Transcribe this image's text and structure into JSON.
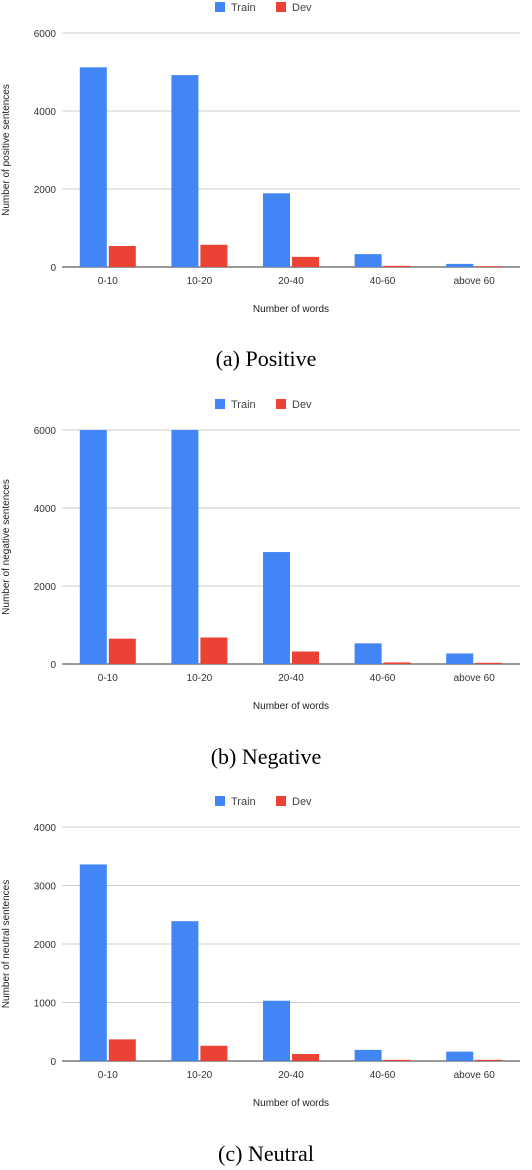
{
  "chart_data": [
    {
      "type": "bar",
      "categories": [
        "0-10",
        "10-20",
        "20-40",
        "40-60",
        "above 60"
      ],
      "series": [
        {
          "name": "Train",
          "color": "#4285f4",
          "values": [
            5120,
            4920,
            1890,
            330,
            80
          ]
        },
        {
          "name": "Dev",
          "color": "#ea4335",
          "values": [
            540,
            570,
            260,
            30,
            10
          ]
        }
      ],
      "xlabel": "Number of words",
      "ylabel": "Number of positive sentences",
      "ylim": [
        0,
        6000
      ],
      "yticks": [
        0,
        2000,
        4000,
        6000
      ],
      "legend": "top",
      "grid": true
    },
    {
      "type": "bar",
      "categories": [
        "0-10",
        "10-20",
        "20-40",
        "40-60",
        "above 60"
      ],
      "series": [
        {
          "name": "Train",
          "color": "#4285f4",
          "values": [
            6000,
            6000,
            2870,
            530,
            270
          ]
        },
        {
          "name": "Dev",
          "color": "#ea4335",
          "values": [
            650,
            680,
            320,
            40,
            30
          ]
        }
      ],
      "xlabel": "Number of words",
      "ylabel": "Number of negative sentences",
      "ylim": [
        0,
        6000
      ],
      "yticks": [
        0,
        2000,
        4000,
        6000
      ],
      "legend": "top",
      "grid": true
    },
    {
      "type": "bar",
      "categories": [
        "0-10",
        "10-20",
        "20-40",
        "40-60",
        "above 60"
      ],
      "series": [
        {
          "name": "Train",
          "color": "#4285f4",
          "values": [
            3360,
            2390,
            1030,
            190,
            160
          ]
        },
        {
          "name": "Dev",
          "color": "#ea4335",
          "values": [
            370,
            260,
            120,
            20,
            20
          ]
        }
      ],
      "xlabel": "Number of words",
      "ylabel": "Number of neutral sentences",
      "ylim": [
        0,
        4000
      ],
      "yticks": [
        0,
        1000,
        2000,
        3000,
        4000
      ],
      "legend": "top",
      "grid": true
    }
  ],
  "captions": [
    "(a) Positive",
    "(b) Negative",
    "(c) Neutral"
  ]
}
